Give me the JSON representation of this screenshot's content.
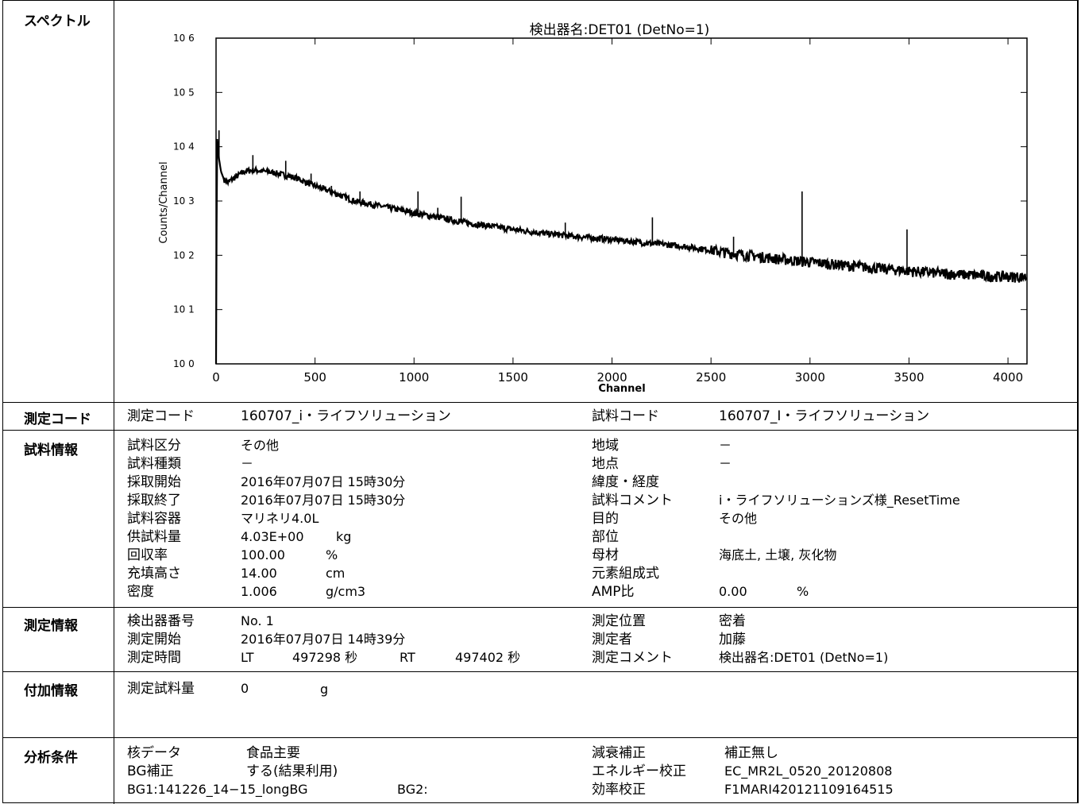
{
  "sections": {
    "spectrum": "スペクトル",
    "code": "測定コード",
    "sample": "試料情報",
    "measure": "測定情報",
    "extra": "付加情報",
    "analysis": "分析条件"
  },
  "chart_data": {
    "type": "line",
    "title": "検出器名:DET01 (DetNo=1)",
    "xlabel": "Channel",
    "ylabel": "Counts/Channel",
    "xlim": [
      0,
      4096
    ],
    "ylim": [
      1,
      1000000
    ],
    "yscale": "log",
    "x_ticks": [
      "0",
      "500",
      "1000",
      "1500",
      "2000",
      "2500",
      "3000",
      "3500",
      "4000"
    ],
    "y_ticks": [
      "10 0",
      "10 1",
      "10 2",
      "10 3",
      "10 4",
      "10 5",
      "10 6"
    ],
    "grid": false,
    "series": [
      {
        "x": [
          0,
          5,
          10,
          15,
          25,
          40,
          60,
          100,
          150,
          200,
          300,
          400,
          500,
          600,
          700,
          800,
          900,
          1000,
          1100,
          1200,
          1300,
          1400,
          1500,
          1600,
          1700,
          1800,
          1900,
          2000,
          2100,
          2200,
          2300,
          2400,
          2500,
          2600,
          2700,
          2800,
          2900,
          3000,
          3100,
          3200,
          3300,
          3400,
          3500,
          3600,
          3700,
          3800,
          3900,
          4000,
          4096
        ],
        "y": [
          1,
          15000,
          10000,
          6000,
          3500,
          2500,
          2200,
          2800,
          3600,
          3700,
          3300,
          2700,
          1900,
          1400,
          1000,
          850,
          720,
          600,
          520,
          440,
          380,
          340,
          300,
          270,
          245,
          225,
          210,
          195,
          180,
          165,
          155,
          140,
          125,
          110,
          100,
          90,
          82,
          76,
          70,
          65,
          60,
          56,
          52,
          49,
          46,
          44,
          42,
          41,
          40
        ]
      }
    ],
    "peaks": [
      {
        "x": 15,
        "y": 20000
      },
      {
        "x": 186,
        "y": 7000
      },
      {
        "x": 352,
        "y": 5500
      },
      {
        "x": 480,
        "y": 3200
      },
      {
        "x": 583,
        "y": 1900
      },
      {
        "x": 727,
        "y": 1500
      },
      {
        "x": 1020,
        "y": 1500
      },
      {
        "x": 1120,
        "y": 750
      },
      {
        "x": 1238,
        "y": 1200
      },
      {
        "x": 1764,
        "y": 400
      },
      {
        "x": 2204,
        "y": 500
      },
      {
        "x": 2614,
        "y": 220
      },
      {
        "x": 2960,
        "y": 1500
      },
      {
        "x": 3490,
        "y": 300
      }
    ]
  },
  "code": {
    "label": "測定コード",
    "value": "160707_i・ライフソリューション",
    "sample_label": "試料コード",
    "sample_value": "160707_I・ライフソリューション"
  },
  "sample_info": {
    "left": [
      {
        "label": "試料区分",
        "value": "その他"
      },
      {
        "label": "試料種類",
        "value": "－"
      },
      {
        "label": "採取開始",
        "value": "2016年07月07日 15時30分"
      },
      {
        "label": "採取終了",
        "value": "2016年07月07日 15時30分"
      },
      {
        "label": "試料容器",
        "value": "マリネリ4.0L"
      },
      {
        "label": "供試料量",
        "value": "4.03E+00",
        "unit": "kg"
      },
      {
        "label": "回収率",
        "value": "100.00",
        "unit": "%"
      },
      {
        "label": "充填高さ",
        "value": "14.00",
        "unit": "cm"
      },
      {
        "label": "密度",
        "value": "1.006",
        "unit": "g/cm3"
      }
    ],
    "right": [
      {
        "label": "地域",
        "value": "－"
      },
      {
        "label": "地点",
        "value": "－"
      },
      {
        "label": "緯度・経度",
        "value": ""
      },
      {
        "label": "試料コメント",
        "value": "i・ライフソリューションズ様_ResetTime"
      },
      {
        "label": "目的",
        "value": "その他"
      },
      {
        "label": "部位",
        "value": ""
      },
      {
        "label": "母材",
        "value": "海底土, 土壌, 灰化物"
      },
      {
        "label": "元素組成式",
        "value": ""
      },
      {
        "label": "AMP比",
        "value": "0.00",
        "unit": "%"
      }
    ]
  },
  "measure_info": {
    "detector_label": "検出器番号",
    "detector_value": "No. 1",
    "start_label": "測定開始",
    "start_value": "2016年07月07日 14時39分",
    "time_label": "測定時間",
    "lt": "LT",
    "lt_value": "497298 秒",
    "rt": "RT",
    "rt_value": "497402 秒",
    "pos_label": "測定位置",
    "pos_value": "密着",
    "person_label": "測定者",
    "person_value": "加藤",
    "comment_label": "測定コメント",
    "comment_value": "検出器名:DET01 (DetNo=1)"
  },
  "extra_info": {
    "label": "測定試料量",
    "value": "0",
    "unit": "g"
  },
  "analysis": {
    "nuclide_label": "核データ",
    "nuclide_value": "食品主要",
    "bg_label": "BG補正",
    "bg_value": "する(結果利用)",
    "bg1": "BG1:141226_14−15_longBG",
    "bg2": "BG2:",
    "decay_label": "減衰補正",
    "decay_value": "補正無し",
    "energy_label": "エネルギー校正",
    "energy_value": "EC_MR2L_0520_20120808",
    "eff_label": "効率校正",
    "eff_value": "F1MARI420121109164515"
  }
}
